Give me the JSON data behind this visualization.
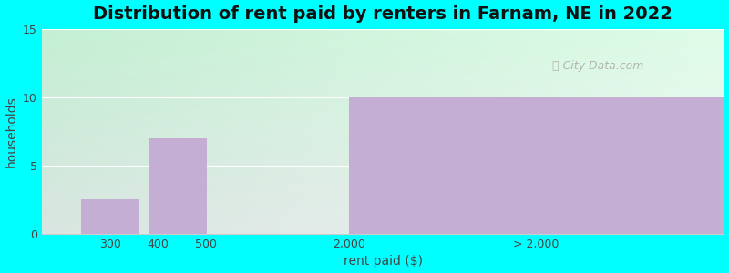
{
  "title": "Distribution of rent paid by renters in Farnam, NE in 2022",
  "xlabel": "rent paid ($)",
  "ylabel": "households",
  "bar_color": "#c4aed4",
  "ylim": [
    0,
    15
  ],
  "yticks": [
    0,
    5,
    10,
    15
  ],
  "background_outer": "#00FFFF",
  "bg_top_left": "#e8f5e8",
  "bg_top_right": "#f0f0f8",
  "bg_bottom_left": "#d8f0d8",
  "bg_bottom_right": "#e8f0f8",
  "title_fontsize": 14,
  "axis_label_fontsize": 10,
  "watermark": "City-Data.com",
  "grid_color": "#ffffff",
  "spine_color": "#cccccc"
}
